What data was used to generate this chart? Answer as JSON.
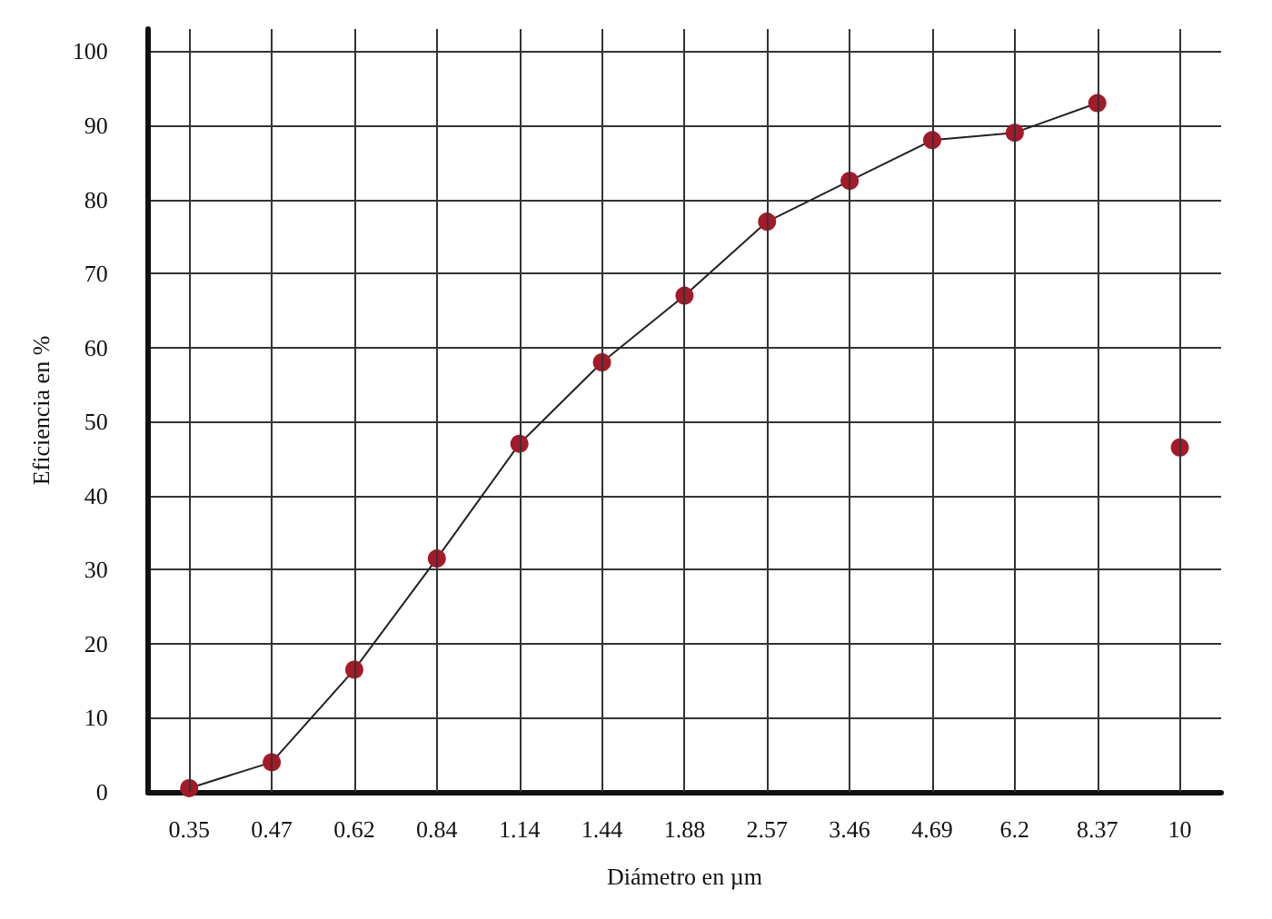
{
  "chart_data": {
    "type": "line",
    "xlabel": "Diámetro en µm",
    "ylabel": "Eficiencia en %",
    "categories": [
      "0.35",
      "0.47",
      "0.62",
      "0.84",
      "1.14",
      "1.44",
      "1.88",
      "2.57",
      "3.46",
      "4.69",
      "6.2",
      "8.37",
      "10"
    ],
    "series": [
      {
        "color": "#a31a2a",
        "values": [
          0.5,
          4,
          16.5,
          31.5,
          47,
          58,
          67,
          77,
          82.5,
          88,
          89,
          93,
          null
        ]
      },
      {
        "type": "scatter",
        "color": "#a31a2a",
        "x": [
          "10"
        ],
        "values": [
          46.5
        ]
      }
    ],
    "ylim": [
      0,
      103
    ],
    "yticks": [
      0,
      10,
      20,
      30,
      40,
      50,
      60,
      70,
      80,
      90,
      100
    ],
    "grid": true,
    "marker": "circle",
    "line_style": "solid"
  }
}
